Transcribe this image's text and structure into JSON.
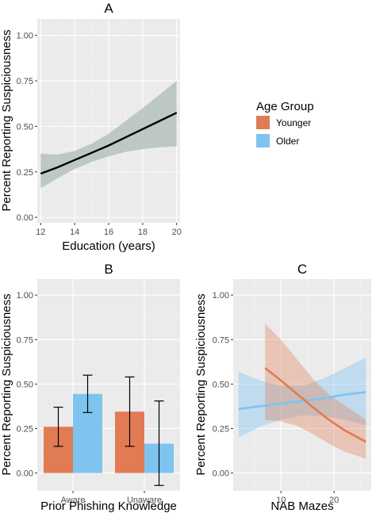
{
  "chart_data": [
    {
      "panel": "A",
      "type": "line",
      "title": "A",
      "xlabel": "Education (years)",
      "ylabel": "Percent Reporting Suspiciousness",
      "xlim": [
        11.8,
        20.2
      ],
      "ylim": [
        -0.03,
        1.09
      ],
      "xticks": [
        12,
        14,
        16,
        18,
        20
      ],
      "xtick_labels": [
        "12",
        "14",
        "16",
        "18",
        "20"
      ],
      "yticks": [
        0,
        0.25,
        0.5,
        0.75,
        1
      ],
      "ytick_labels": [
        "0.00",
        "0.25",
        "0.50",
        "0.75",
        "1.00"
      ],
      "grid": true,
      "series": [
        {
          "x": [
            12,
            13,
            14,
            15,
            16,
            17,
            18,
            19,
            20
          ],
          "y": [
            0.24,
            0.275,
            0.315,
            0.355,
            0.395,
            0.44,
            0.485,
            0.53,
            0.575
          ],
          "ci_low": [
            0.16,
            0.215,
            0.265,
            0.305,
            0.335,
            0.36,
            0.375,
            0.385,
            0.39
          ],
          "ci_high": [
            0.35,
            0.345,
            0.365,
            0.405,
            0.46,
            0.53,
            0.6,
            0.675,
            0.75
          ]
        }
      ]
    },
    {
      "panel": "B",
      "type": "bar",
      "title": "B",
      "xlabel": "Prior Phishing Knowledge",
      "ylabel": "Percent Reporting Suspiciousness",
      "categories": [
        "Aware",
        "Unaware"
      ],
      "ylim": [
        -0.1,
        1.09
      ],
      "yticks": [
        0,
        0.25,
        0.5,
        0.75,
        1
      ],
      "ytick_labels": [
        "0.00",
        "0.25",
        "0.50",
        "0.75",
        "1.00"
      ],
      "grid": true,
      "series": [
        {
          "name": "Younger",
          "values": [
            0.26,
            0.345
          ],
          "err_low": [
            0.15,
            0.15
          ],
          "err_high": [
            0.37,
            0.54
          ]
        },
        {
          "name": "Older",
          "values": [
            0.445,
            0.165
          ],
          "err_low": [
            0.34,
            -0.07
          ],
          "err_high": [
            0.55,
            0.405
          ]
        }
      ]
    },
    {
      "panel": "C",
      "type": "line",
      "title": "C",
      "xlabel": "NAB Mazes",
      "ylabel": "Percent Reporting Suspiciousness",
      "xlim": [
        1,
        27
      ],
      "ylim": [
        -0.1,
        1.09
      ],
      "xticks": [
        10,
        20
      ],
      "xtick_labels": [
        "10",
        "20"
      ],
      "yticks": [
        0,
        0.25,
        0.5,
        0.75,
        1
      ],
      "ytick_labels": [
        "0.00",
        "0.25",
        "0.50",
        "0.75",
        "1.00"
      ],
      "grid": true,
      "series": [
        {
          "name": "Younger",
          "x": [
            7,
            10,
            13,
            16,
            19,
            22,
            26
          ],
          "y": [
            0.59,
            0.52,
            0.445,
            0.37,
            0.3,
            0.24,
            0.175
          ],
          "ci_low": [
            0.3,
            0.29,
            0.265,
            0.22,
            0.165,
            0.12,
            0.08
          ],
          "ci_high": [
            0.84,
            0.75,
            0.64,
            0.53,
            0.44,
            0.38,
            0.3
          ]
        },
        {
          "name": "Older",
          "x": [
            2,
            6,
            10,
            14,
            18,
            22,
            26
          ],
          "y": [
            0.36,
            0.375,
            0.39,
            0.405,
            0.42,
            0.44,
            0.455
          ],
          "ci_low": [
            0.2,
            0.26,
            0.3,
            0.325,
            0.32,
            0.3,
            0.27
          ],
          "ci_high": [
            0.57,
            0.52,
            0.49,
            0.49,
            0.53,
            0.59,
            0.65
          ]
        }
      ]
    }
  ],
  "legend": {
    "title": "Age Group",
    "items": [
      {
        "label": "Younger",
        "color": "#e07b54"
      },
      {
        "label": "Older",
        "color": "#7ec4ef"
      }
    ],
    "placement": "right"
  },
  "colors": {
    "panel_bg": "#ebebeb",
    "grid_major": "#ffffff",
    "grid_minor": "#f4f4f4",
    "ribbon_a": "#b5c2c0",
    "line_a": "#000000",
    "younger": "#e07b54",
    "older": "#7ec4ef"
  }
}
